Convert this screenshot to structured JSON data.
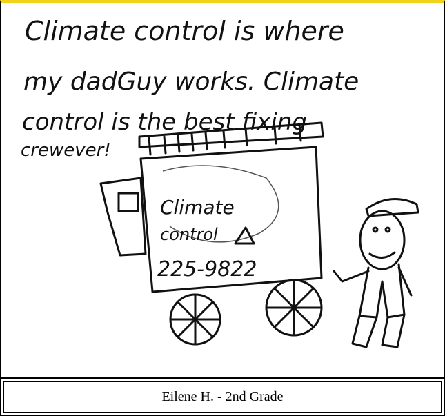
{
  "drawing": {
    "text": [
      "Climate control is where",
      "my dadGuy works. Climate",
      "control is the best fixing",
      "crewever!"
    ],
    "truck_text": [
      "Climate",
      "control",
      "225-9822"
    ]
  },
  "caption": "Eilene H. - 2nd Grade"
}
